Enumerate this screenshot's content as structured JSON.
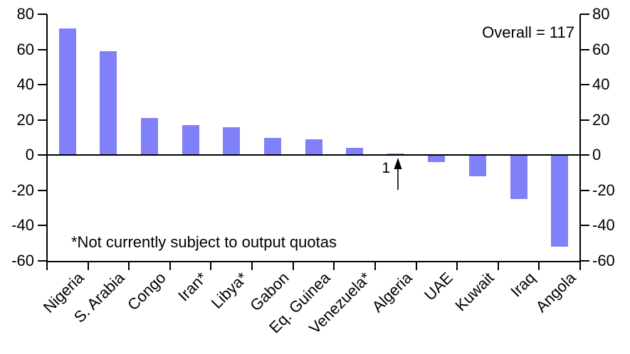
{
  "chart_data": {
    "type": "bar",
    "title": "",
    "xlabel": "",
    "ylabel": "",
    "categories": [
      "Nigeria",
      "S. Arabia",
      "Congo",
      "Iran*",
      "Libya*",
      "Gabon",
      "Eq. Guinea",
      "Venezuela*",
      "Algeria",
      "UAE",
      "Kuwait",
      "Iraq",
      "Angola"
    ],
    "values": [
      72,
      59,
      21,
      17,
      16,
      10,
      9,
      4,
      1,
      -4,
      -12,
      -25,
      -52
    ],
    "ylim": [
      -60,
      80
    ],
    "yticks": [
      80,
      60,
      40,
      20,
      0,
      -20,
      -40,
      -60
    ],
    "grid": false,
    "legend_position": "none",
    "right_axis_mirrored": true,
    "bar_color": "#8080f8",
    "axis_color": "#000000",
    "background_color": "#ffffff",
    "annotations": {
      "overall_label": "Overall = 117",
      "footnote": "*Not currently subject to output quotas",
      "algeria_callout_value": "1"
    }
  }
}
